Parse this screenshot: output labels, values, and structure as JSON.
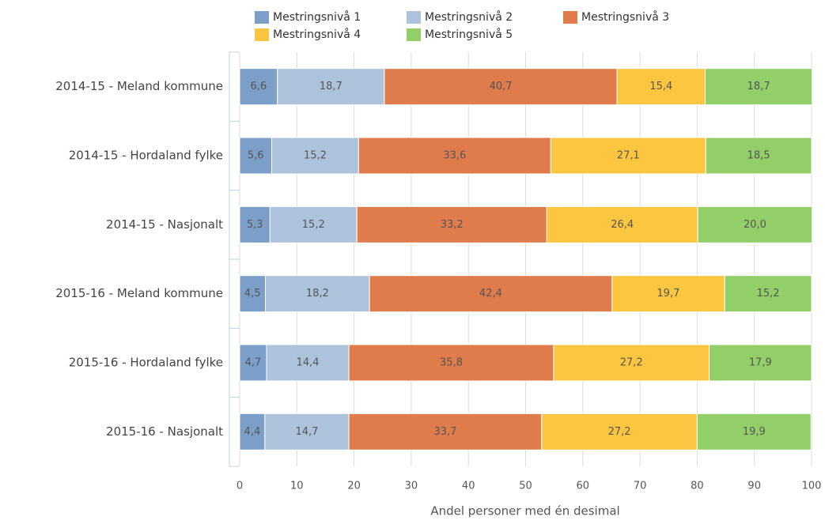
{
  "chart_data": {
    "type": "stacked_bar_horizontal",
    "categories": [
      "2014-15 - Meland kommune",
      "2014-15 - Hordaland fylke",
      "2014-15 - Nasjonalt",
      "2015-16 - Meland kommune",
      "2015-16 - Hordaland fylke",
      "2015-16 - Nasjonalt"
    ],
    "series": [
      {
        "name": "Mestringsnivå 1",
        "color": "#7b9fc9",
        "values": [
          6.6,
          5.6,
          5.3,
          4.5,
          4.7,
          4.4
        ],
        "value_labels": [
          "6,6",
          "5,6",
          "5,3",
          "4,5",
          "4,7",
          "4,4"
        ]
      },
      {
        "name": "Mestringsnivå 2",
        "color": "#adc3dc",
        "values": [
          18.7,
          15.2,
          15.2,
          18.2,
          14.4,
          14.7
        ],
        "value_labels": [
          "18,7",
          "15,2",
          "15,2",
          "18,2",
          "14,4",
          "14,7"
        ]
      },
      {
        "name": "Mestringsnivå 3",
        "color": "#e07b4c",
        "values": [
          40.7,
          33.6,
          33.2,
          42.4,
          35.8,
          33.7
        ],
        "value_labels": [
          "40,7",
          "33,6",
          "33,2",
          "42,4",
          "35,8",
          "33,7"
        ]
      },
      {
        "name": "Mestringsnivå 4",
        "color": "#fdc640",
        "values": [
          15.4,
          27.1,
          26.4,
          19.7,
          27.2,
          27.2
        ],
        "value_labels": [
          "15,4",
          "27,1",
          "26,4",
          "19,7",
          "27,2",
          "27,2"
        ]
      },
      {
        "name": "Mestringsnivå 5",
        "color": "#93cf68",
        "values": [
          18.7,
          18.5,
          20.0,
          15.2,
          17.9,
          19.9
        ],
        "value_labels": [
          "18,7",
          "18,5",
          "20,0",
          "15,2",
          "17,9",
          "19,9"
        ]
      }
    ],
    "xlabel": "Andel personer med én desimal",
    "xlim": [
      0,
      100
    ],
    "xticks": [
      0,
      10,
      20,
      30,
      40,
      50,
      60,
      70,
      80,
      90,
      100
    ],
    "grid": true,
    "legend": "top"
  }
}
